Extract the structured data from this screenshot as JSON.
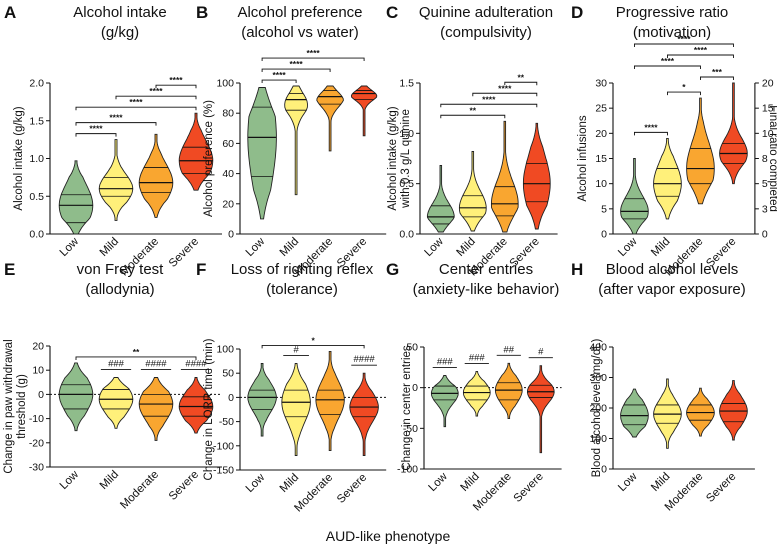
{
  "shared_xlabel": "AUD-like phenotype",
  "categories": [
    "Low",
    "Mild",
    "Moderate",
    "Severe"
  ],
  "colors": {
    "Low": "#8fbc8b",
    "Mild": "#fff07a",
    "Moderate": "#f9a630",
    "Severe": "#f04a23"
  },
  "chart_data": [
    {
      "panel": "A",
      "type": "violin",
      "title": "Alcohol intake",
      "subtitle": "(g/kg)",
      "ylabel": "Alcohol intake (g/kg)",
      "ylim": [
        0,
        2.0
      ],
      "yticks": [
        "0.0",
        "0.5",
        "1.0",
        "1.5",
        "2.0"
      ],
      "categories": [
        "Low",
        "Mild",
        "Moderate",
        "Severe"
      ],
      "series": [
        {
          "name": "Low",
          "min": 0.0,
          "q1": 0.15,
          "median": 0.38,
          "q3": 0.52,
          "max": 0.97
        },
        {
          "name": "Mild",
          "min": 0.18,
          "q1": 0.5,
          "median": 0.6,
          "q3": 0.75,
          "max": 1.25
        },
        {
          "name": "Moderate",
          "min": 0.22,
          "q1": 0.55,
          "median": 0.68,
          "q3": 0.88,
          "max": 1.32
        },
        {
          "name": "Severe",
          "min": 0.58,
          "q1": 0.8,
          "median": 0.97,
          "q3": 1.15,
          "max": 1.6
        }
      ],
      "comparisons": [
        {
          "pair": [
            "Low",
            "Mild"
          ],
          "label": "****"
        },
        {
          "pair": [
            "Low",
            "Moderate"
          ],
          "label": "****"
        },
        {
          "pair": [
            "Low",
            "Severe"
          ],
          "label": "****"
        },
        {
          "pair": [
            "Mild",
            "Severe"
          ],
          "label": "****"
        },
        {
          "pair": [
            "Moderate",
            "Severe"
          ],
          "label": "****"
        }
      ]
    },
    {
      "panel": "B",
      "type": "violin",
      "title": "Alcohol preference",
      "subtitle": "(alcohol vs water)",
      "ylabel": "Alcohol preference (%)",
      "ylim": [
        0,
        100
      ],
      "yticks": [
        "0",
        "20",
        "40",
        "60",
        "80",
        "100"
      ],
      "categories": [
        "Low",
        "Mild",
        "Moderate",
        "Severe"
      ],
      "series": [
        {
          "name": "Low",
          "min": 10,
          "q1": 38,
          "median": 64,
          "q3": 84,
          "max": 97
        },
        {
          "name": "Mild",
          "min": 26,
          "q1": 82,
          "median": 89,
          "q3": 93,
          "max": 98
        },
        {
          "name": "Moderate",
          "min": 55,
          "q1": 86,
          "median": 91,
          "q3": 95,
          "max": 98
        },
        {
          "name": "Severe",
          "min": 65,
          "q1": 89,
          "median": 93,
          "q3": 95,
          "max": 98
        }
      ],
      "comparisons": [
        {
          "pair": [
            "Low",
            "Mild"
          ],
          "label": "****"
        },
        {
          "pair": [
            "Low",
            "Moderate"
          ],
          "label": "****"
        },
        {
          "pair": [
            "Low",
            "Severe"
          ],
          "label": "****"
        }
      ]
    },
    {
      "panel": "C",
      "type": "violin",
      "title": "Quinine adulteration",
      "subtitle": "(compulsivity)",
      "ylabel": "Alcohol intake (g/kg)",
      "ylabel2": "with 0.3 g/L quinine",
      "ylim": [
        0,
        1.5
      ],
      "yticks": [
        "0.0",
        "0.5",
        "1.0",
        "1.5"
      ],
      "categories": [
        "Low",
        "Mild",
        "Moderate",
        "Severe"
      ],
      "series": [
        {
          "name": "Low",
          "min": 0.02,
          "q1": 0.1,
          "median": 0.17,
          "q3": 0.28,
          "max": 0.68
        },
        {
          "name": "Mild",
          "min": 0.03,
          "q1": 0.17,
          "median": 0.26,
          "q3": 0.38,
          "max": 0.82
        },
        {
          "name": "Moderate",
          "min": 0.02,
          "q1": 0.18,
          "median": 0.3,
          "q3": 0.47,
          "max": 1.12
        },
        {
          "name": "Severe",
          "min": 0.05,
          "q1": 0.32,
          "median": 0.5,
          "q3": 0.7,
          "max": 1.1
        }
      ],
      "comparisons": [
        {
          "pair": [
            "Low",
            "Moderate"
          ],
          "label": "**"
        },
        {
          "pair": [
            "Low",
            "Severe"
          ],
          "label": "****"
        },
        {
          "pair": [
            "Mild",
            "Severe"
          ],
          "label": "****"
        },
        {
          "pair": [
            "Moderate",
            "Severe"
          ],
          "label": "**"
        }
      ]
    },
    {
      "panel": "D",
      "type": "violin",
      "title": "Progressive ratio",
      "subtitle": "(motivation)",
      "ylabel": "Alcohol infusions",
      "ylabel_right": "Final ratio completed",
      "ylim": [
        0,
        30
      ],
      "yticks": [
        "0",
        "5",
        "10",
        "15",
        "20",
        "25",
        "30"
      ],
      "yticks_right": [
        "0",
        "3",
        "5",
        "8",
        "10",
        "15",
        "20"
      ],
      "categories": [
        "Low",
        "Mild",
        "Moderate",
        "Severe"
      ],
      "series": [
        {
          "name": "Low",
          "min": 0,
          "q1": 3,
          "median": 4.5,
          "q3": 7,
          "max": 15
        },
        {
          "name": "Mild",
          "min": 3,
          "q1": 7.5,
          "median": 10,
          "q3": 13,
          "max": 19
        },
        {
          "name": "Moderate",
          "min": 6,
          "q1": 10,
          "median": 13,
          "q3": 17,
          "max": 27
        },
        {
          "name": "Severe",
          "min": 10,
          "q1": 14,
          "median": 16,
          "q3": 18,
          "max": 30
        }
      ],
      "comparisons": [
        {
          "pair": [
            "Low",
            "Mild"
          ],
          "label": "****"
        },
        {
          "pair": [
            "Mild",
            "Moderate"
          ],
          "label": "*"
        },
        {
          "pair": [
            "Moderate",
            "Severe"
          ],
          "label": "***"
        },
        {
          "pair": [
            "Low",
            "Moderate"
          ],
          "label": "****"
        },
        {
          "pair": [
            "Mild",
            "Severe"
          ],
          "label": "****"
        },
        {
          "pair": [
            "Low",
            "Severe"
          ],
          "label": "****"
        }
      ]
    },
    {
      "panel": "E",
      "type": "violin",
      "title": "von Frey test",
      "subtitle": "(allodynia)",
      "ylabel": "Change in paw withdrawal",
      "ylabel2": "threshold (g)",
      "ylim": [
        -30,
        20
      ],
      "yticks": [
        "-30",
        "-20",
        "-10",
        "0",
        "10",
        "20"
      ],
      "zero_line": true,
      "categories": [
        "Low",
        "Mild",
        "Moderate",
        "Severe"
      ],
      "series": [
        {
          "name": "Low",
          "min": -15,
          "q1": -6,
          "median": 0,
          "q3": 4,
          "max": 13
        },
        {
          "name": "Mild",
          "min": -14,
          "q1": -6,
          "median": -2,
          "q3": 2,
          "max": 7
        },
        {
          "name": "Moderate",
          "min": -19,
          "q1": -9,
          "median": -4,
          "q3": 0,
          "max": 7
        },
        {
          "name": "Severe",
          "min": -16,
          "q1": -9,
          "median": -5,
          "q3": -1,
          "max": 7
        }
      ],
      "comparisons": [
        {
          "pair": [
            "Low",
            "Severe"
          ],
          "label": "**"
        }
      ],
      "hash_marks": [
        {
          "group": "Mild",
          "label": "###"
        },
        {
          "group": "Moderate",
          "label": "####"
        },
        {
          "group": "Severe",
          "label": "####"
        }
      ]
    },
    {
      "panel": "F",
      "type": "violin",
      "title": "Loss of righting reflex",
      "subtitle": "(tolerance)",
      "ylabel": "Change in LORR time (min)",
      "ylim": [
        -150,
        100
      ],
      "yticks": [
        "-150",
        "-100",
        "-50",
        "0",
        "50",
        "100"
      ],
      "zero_line": true,
      "categories": [
        "Low",
        "Mild",
        "Moderate",
        "Severe"
      ],
      "series": [
        {
          "name": "Low",
          "min": -80,
          "q1": -25,
          "median": 0,
          "q3": 15,
          "max": 70
        },
        {
          "name": "Mild",
          "min": -120,
          "q1": -40,
          "median": -10,
          "q3": 15,
          "max": 70
        },
        {
          "name": "Moderate",
          "min": -110,
          "q1": -35,
          "median": -5,
          "q3": 15,
          "max": 95
        },
        {
          "name": "Severe",
          "min": -120,
          "q1": -40,
          "median": -20,
          "q3": 0,
          "max": 50
        }
      ],
      "comparisons": [
        {
          "pair": [
            "Low",
            "Severe"
          ],
          "label": "*"
        }
      ],
      "hash_marks": [
        {
          "group": "Mild",
          "label": "#"
        },
        {
          "group": "Severe",
          "label": "####"
        }
      ]
    },
    {
      "panel": "G",
      "type": "violin",
      "title": "Center entries",
      "subtitle": "(anxiety-like behavior)",
      "ylabel": "Change in center entries",
      "ylim": [
        -100,
        50
      ],
      "yticks": [
        "-100",
        "-50",
        "0",
        "50"
      ],
      "zero_line": true,
      "categories": [
        "Low",
        "Mild",
        "Moderate",
        "Severe"
      ],
      "series": [
        {
          "name": "Low",
          "min": -48,
          "q1": -15,
          "median": -7,
          "q3": 2,
          "max": 15
        },
        {
          "name": "Mild",
          "min": -35,
          "q1": -15,
          "median": -6,
          "q3": 2,
          "max": 20
        },
        {
          "name": "Moderate",
          "min": -38,
          "q1": -15,
          "median": -3,
          "q3": 6,
          "max": 30
        },
        {
          "name": "Severe",
          "min": -80,
          "q1": -12,
          "median": -5,
          "q3": 3,
          "max": 27
        }
      ],
      "hash_marks": [
        {
          "group": "Low",
          "label": "###"
        },
        {
          "group": "Mild",
          "label": "###"
        },
        {
          "group": "Moderate",
          "label": "##"
        },
        {
          "group": "Severe",
          "label": "#"
        }
      ]
    },
    {
      "panel": "H",
      "type": "violin",
      "title": "Blood alcohol levels",
      "subtitle": "(after vapor exposure)",
      "ylabel": "Blood alcohol level (mg/dL)",
      "ylim": [
        0,
        400
      ],
      "yticks": [
        "0",
        "100",
        "200",
        "300",
        "400"
      ],
      "categories": [
        "Low",
        "Mild",
        "Moderate",
        "Severe"
      ],
      "series": [
        {
          "name": "Low",
          "min": 105,
          "q1": 145,
          "median": 175,
          "q3": 210,
          "max": 262
        },
        {
          "name": "Mild",
          "min": 68,
          "q1": 150,
          "median": 180,
          "q3": 210,
          "max": 295
        },
        {
          "name": "Moderate",
          "min": 108,
          "q1": 160,
          "median": 185,
          "q3": 210,
          "max": 265
        },
        {
          "name": "Severe",
          "min": 95,
          "q1": 155,
          "median": 190,
          "q3": 215,
          "max": 290
        }
      ]
    }
  ]
}
